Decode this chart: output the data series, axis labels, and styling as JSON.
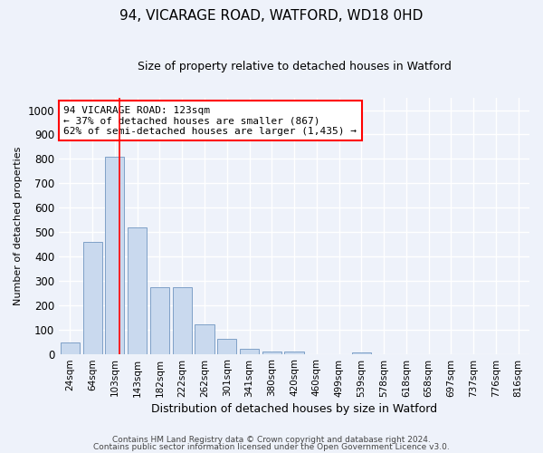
{
  "title1": "94, VICARAGE ROAD, WATFORD, WD18 0HD",
  "title2": "Size of property relative to detached houses in Watford",
  "xlabel": "Distribution of detached houses by size in Watford",
  "ylabel": "Number of detached properties",
  "bar_color": "#c9d9ee",
  "bar_edge_color": "#7096c0",
  "categories": [
    "24sqm",
    "64sqm",
    "103sqm",
    "143sqm",
    "182sqm",
    "222sqm",
    "262sqm",
    "301sqm",
    "341sqm",
    "380sqm",
    "420sqm",
    "460sqm",
    "499sqm",
    "539sqm",
    "578sqm",
    "618sqm",
    "658sqm",
    "697sqm",
    "737sqm",
    "776sqm",
    "816sqm"
  ],
  "values": [
    45,
    460,
    810,
    520,
    275,
    275,
    120,
    60,
    20,
    8,
    10,
    0,
    0,
    5,
    0,
    0,
    0,
    0,
    0,
    0,
    0
  ],
  "ylim": [
    0,
    1050
  ],
  "yticks": [
    0,
    100,
    200,
    300,
    400,
    500,
    600,
    700,
    800,
    900,
    1000
  ],
  "property_bin_index": 2,
  "vline_x_offset": 0.2,
  "annotation_text": "94 VICARAGE ROAD: 123sqm\n← 37% of detached houses are smaller (867)\n62% of semi-detached houses are larger (1,435) →",
  "annotation_box_color": "white",
  "annotation_box_edge_color": "red",
  "vline_color": "red",
  "footnote1": "Contains HM Land Registry data © Crown copyright and database right 2024.",
  "footnote2": "Contains public sector information licensed under the Open Government Licence v3.0.",
  "background_color": "#eef2fa",
  "grid_color": "white",
  "title1_fontsize": 11,
  "title2_fontsize": 9,
  "ylabel_fontsize": 8,
  "xlabel_fontsize": 9
}
